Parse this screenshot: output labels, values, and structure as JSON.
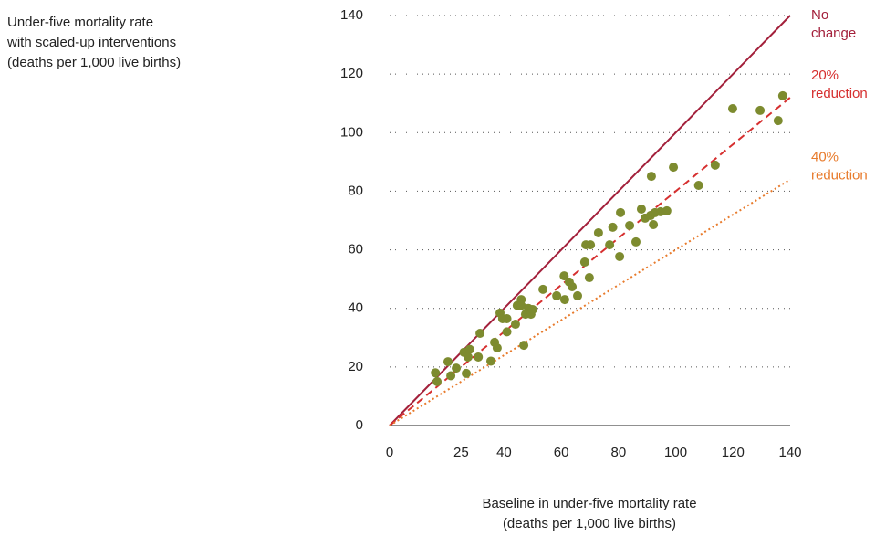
{
  "chart_data": {
    "type": "scatter",
    "ylabel": [
      "Under-five mortality rate",
      "with scaled-up interventions",
      "(deaths per 1,000 live births)"
    ],
    "xlabel": [
      "Baseline in under-five mortality rate",
      "(deaths per 1,000 live births)"
    ],
    "xlim": [
      0,
      140
    ],
    "ylim": [
      0,
      140
    ],
    "xticks": [
      0,
      25,
      40,
      60,
      80,
      100,
      120,
      140
    ],
    "yticks": [
      0,
      20,
      40,
      60,
      80,
      100,
      120,
      140
    ],
    "grid": true,
    "color": "#7d8b2f",
    "x": [
      16,
      16.6,
      20.4,
      21.4,
      23.3,
      26,
      26.8,
      27.4,
      28,
      31,
      31.6,
      35.4,
      36.7,
      37.6,
      38.6,
      39.5,
      41,
      41,
      44,
      44.6,
      46,
      46,
      46.9,
      47.5,
      48.5,
      49.4,
      50,
      53.6,
      58.4,
      61,
      61.2,
      62.8,
      63.8,
      65.7,
      68.2,
      68.6,
      70.2,
      69.8,
      73,
      76.9,
      78,
      80.7,
      80.4,
      83.9,
      86.1,
      88,
      89.3,
      91.2,
      91.5,
      92.2,
      92.8,
      94.7,
      96.9,
      99.2,
      108,
      113.8,
      119.9,
      129.5,
      135.8,
      137.4
    ],
    "y": [
      18,
      15,
      21.8,
      17,
      19.6,
      25,
      17.8,
      23.4,
      26,
      23.4,
      31.5,
      22,
      28.4,
      26.5,
      38.4,
      36.5,
      36.5,
      32,
      34.6,
      41,
      43,
      41,
      27.4,
      38,
      40,
      38,
      39.6,
      46.5,
      44.3,
      51.1,
      43,
      49,
      47.4,
      44.3,
      55.8,
      61.7,
      61.7,
      50.5,
      65.8,
      61.7,
      67.7,
      72.7,
      57.7,
      68.3,
      62.7,
      73.9,
      70.8,
      71.7,
      85.1,
      68.6,
      72.7,
      73,
      73.3,
      88.2,
      82,
      88.9,
      108.2,
      107.6,
      104.1,
      112.6
    ],
    "reference_lines": [
      {
        "name": "No change",
        "color": "#a3203b",
        "style": "solid",
        "x": [
          0,
          140
        ],
        "y": [
          0,
          140
        ]
      },
      {
        "name": "20% reduction",
        "color": "#d62f2f",
        "style": "dashed",
        "x": [
          0,
          140
        ],
        "y": [
          0,
          112
        ]
      },
      {
        "name": "40% reduction",
        "color": "#e87b2c",
        "style": "dotted",
        "x": [
          0,
          140
        ],
        "y": [
          0,
          84
        ]
      }
    ]
  }
}
